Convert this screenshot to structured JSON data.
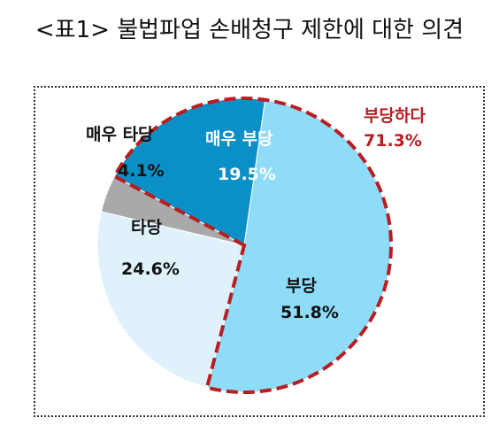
{
  "title": "<표1> 불법파업 손배청구 제한에 대한 의견",
  "chart_data": {
    "type": "pie",
    "title": "<표1> 불법파업 손배청구 제한에 대한 의견",
    "slices": [
      {
        "label": "매우 부당",
        "value": 19.5,
        "display": "19.5%",
        "color": "#0a8fc6"
      },
      {
        "label": "부당",
        "value": 51.8,
        "display": "51.8%",
        "color": "#8fdcf8"
      },
      {
        "label": "타당",
        "value": 24.6,
        "display": "24.6%",
        "color": "#dff2fb"
      },
      {
        "label": "매우 타당",
        "value": 4.1,
        "display": "4.1%",
        "color": "#a9a9a9"
      }
    ],
    "group_annotation": {
      "label": "부당하다",
      "value": 71.3,
      "display": "71.3%",
      "color": "#b81d22"
    }
  }
}
